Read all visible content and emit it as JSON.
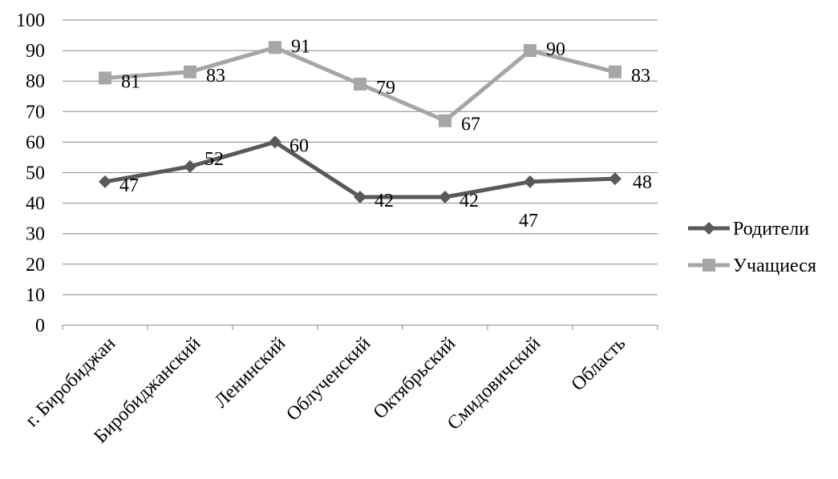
{
  "chart_data": {
    "type": "line",
    "categories": [
      "г. Биробиджан",
      "Биробиджанский",
      "Ленинский",
      "Облученский",
      "Октябрьский",
      "Смидовичский",
      "Область"
    ],
    "series": [
      {
        "name": "Родители",
        "values": [
          47,
          52,
          60,
          42,
          42,
          47,
          48
        ],
        "labels": [
          "47",
          "52",
          "60",
          "42",
          "42",
          "47",
          "48"
        ],
        "color": "#595959",
        "marker": "diamond"
      },
      {
        "name": "Учащиеся",
        "values": [
          81,
          83,
          91,
          79,
          67,
          90,
          83
        ],
        "labels": [
          "81",
          "83",
          "91",
          "79",
          "67",
          "90",
          "83"
        ],
        "color": "#a6a6a6",
        "marker": "square"
      }
    ],
    "title": "",
    "xlabel": "",
    "ylabel": "",
    "ylim": [
      0,
      100
    ],
    "yticks": [
      "0",
      "10",
      "20",
      "30",
      "40",
      "50",
      "60",
      "70",
      "80",
      "90",
      "100"
    ],
    "grid": true,
    "legend_position": "right",
    "gridline_color": "#868686"
  }
}
